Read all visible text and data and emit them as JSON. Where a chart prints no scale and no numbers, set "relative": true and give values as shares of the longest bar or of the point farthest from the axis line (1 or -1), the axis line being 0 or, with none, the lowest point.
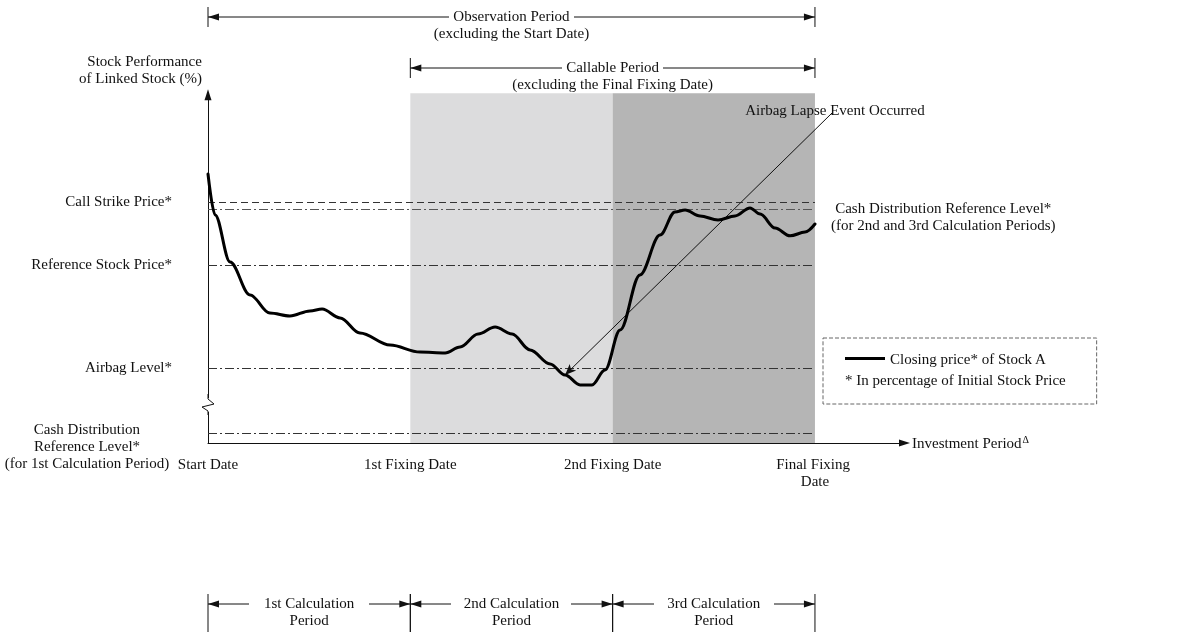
{
  "chart_data": {
    "type": "line",
    "relative": true,
    "xlabel": "Investment Period$^{Δ}$",
    "x": [
      0,
      0.035,
      0.109,
      0.208,
      0.306,
      0.405,
      0.504,
      0.564,
      0.653,
      0.751,
      0.9,
      1.048,
      1.172,
      1.246,
      1.335,
      1.419,
      1.503,
      1.592,
      1.691,
      1.765,
      1.839,
      1.898,
      1.962,
      2.037,
      2.135,
      2.234,
      2.308,
      2.358,
      2.432,
      2.521,
      2.605,
      2.679,
      2.729,
      2.803,
      2.877,
      2.951,
      3
    ],
    "xlim": [
      0,
      3.45
    ],
    "xticks": [
      {
        "value": 0,
        "label": "Start Date"
      },
      {
        "value": 1,
        "label": "1st Fixing Date"
      },
      {
        "value": 2,
        "label": "2nd Fixing Date"
      },
      {
        "value": 3,
        "label": "Final Fixing Date"
      }
    ],
    "series": [
      {
        "name": "Closing price* of Stock A",
        "color": "#000000",
        "values": [
          1,
          0.848,
          0.673,
          0.55,
          0.483,
          0.472,
          0.491,
          0.498,
          0.465,
          0.409,
          0.364,
          0.338,
          0.335,
          0.357,
          0.405,
          0.431,
          0.405,
          0.346,
          0.294,
          0.253,
          0.216,
          0.216,
          0.271,
          0.42,
          0.625,
          0.773,
          0.859,
          0.866,
          0.844,
          0.829,
          0.844,
          0.874,
          0.851,
          0.799,
          0.77,
          0.784,
          0.814
        ]
      }
    ],
    "ref_lines": [
      {
        "axis": "y",
        "value": 0.896,
        "color": "#333333",
        "line_style": "dashed"
      },
      {
        "axis": "y",
        "value": 0.87,
        "color": "#555555",
        "line_style": "dashdot"
      },
      {
        "axis": "y",
        "value": 0.662,
        "color": "#333333",
        "line_style": "dashdot"
      },
      {
        "axis": "y",
        "value": 0.279,
        "color": "#333333",
        "line_style": "dashdot"
      },
      {
        "axis": "y",
        "value": 0.037,
        "color": "#333333",
        "line_style": "dashdot"
      }
    ],
    "bands": [
      {
        "axis": "x",
        "from": 1,
        "to": 2,
        "color": "#dcdcdd"
      },
      {
        "axis": "x",
        "from": 2,
        "to": 3,
        "color": "#b5b5b5"
      }
    ],
    "annotations": [
      "Stock Performance of Linked Stock (%)",
      "Observation Period (excluding the Start Date)",
      "Callable Period (excluding the Final Fixing Date)",
      "1st Calculation Period",
      "2nd Calculation Period",
      "3rd Calculation Period",
      {
        "text": "Call Strike Price*",
        "x": 0,
        "y": 0.896
      },
      {
        "text": "Reference Stock Price*",
        "x": 0,
        "y": 0.662
      },
      {
        "text": "Airbag Level*",
        "x": 0,
        "y": 0.279
      },
      {
        "text": "Cash Distribution Reference Level* (for 1st Calculation Period)",
        "x": 0,
        "y": 0.037
      },
      {
        "text": "Cash Distribution Reference Level* (for 2nd and 3rd Calculation Periods)",
        "x": 3,
        "y": 0.87
      },
      {
        "text": "Airbag Lapse Event Occurred",
        "x": 1.765,
        "y": 0.253
      },
      "* In percentage of Initial Stock Price"
    ],
    "legend": "right",
    "marker": "none",
    "line_style": "solid",
    "grid": false
  }
}
